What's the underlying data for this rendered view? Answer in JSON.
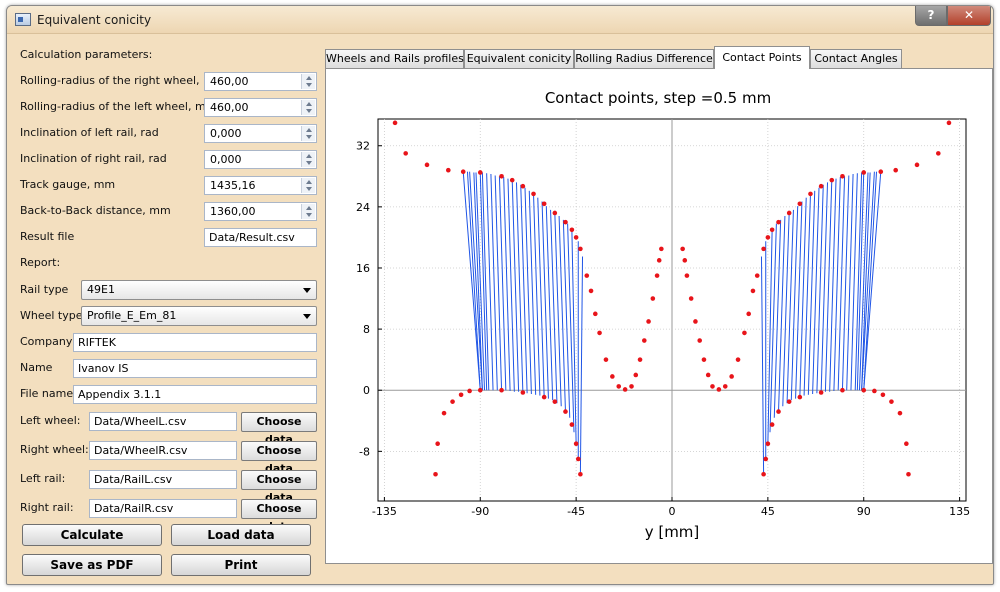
{
  "window": {
    "title": "Equivalent conicity",
    "help_label": "?",
    "close_label": "✕"
  },
  "params": {
    "header": "Calculation parameters:",
    "right_radius_label": "Rolling-radius of the right wheel, mm",
    "right_radius_value": "460,00",
    "left_radius_label": "Rolling-radius of the left wheel, mm",
    "left_radius_value": "460,00",
    "left_incl_label": "Inclination of left rail, rad",
    "left_incl_value": "0,000",
    "right_incl_label": "Inclination of right rail, rad",
    "right_incl_value": "0,000",
    "gauge_label": "Track gauge, mm",
    "gauge_value": "1435,16",
    "b2b_label": "Back-to-Back distance, mm",
    "b2b_value": "1360,00",
    "result_label": "Result file",
    "result_value": "Data/Result.csv"
  },
  "report": {
    "header": "Report:",
    "rail_type_label": "Rail type",
    "rail_type_value": "49E1",
    "wheel_type_label": "Wheel type",
    "wheel_type_value": "Profile_E_Em_81",
    "company_label": "Company",
    "company_value": "RIFTEK",
    "name_label": "Name",
    "name_value": "Ivanov IS",
    "filename_label": "File name",
    "filename_value": "Appendix 3.1.1"
  },
  "files": [
    {
      "label": "Left wheel:",
      "value": "Data/WheelL.csv",
      "button": "Choose data"
    },
    {
      "label": "Right wheel:",
      "value": "Data/WheelR.csv",
      "button": "Choose data"
    },
    {
      "label": "Left rail:",
      "value": "Data/RailL.csv",
      "button": "Choose data"
    },
    {
      "label": "Right rail:",
      "value": "Data/RailR.csv",
      "button": "Choose data"
    }
  ],
  "actions": {
    "calculate": "Calculate",
    "load": "Load data",
    "save_pdf": "Save as PDF",
    "print": "Print"
  },
  "tabs": [
    {
      "label": "Wheels and Rails profiles"
    },
    {
      "label": "Equivalent conicity"
    },
    {
      "label": "Rolling Radius Difference"
    },
    {
      "label": "Contact Points"
    },
    {
      "label": "Contact Angles"
    }
  ],
  "chart_data": {
    "type": "scatter",
    "title": "Contact points, step =0.5 mm",
    "xlabel": "y [mm]",
    "ylabel": "",
    "xlim": [
      -138,
      138
    ],
    "ylim": [
      -14.5,
      35.5
    ],
    "x_ticks": [
      -135,
      -90,
      -45,
      0,
      45,
      90,
      135
    ],
    "y_ticks": [
      -8,
      0,
      8,
      16,
      24,
      32
    ],
    "grid": true,
    "colors": {
      "profile": "#e8141a",
      "contact": "#1f55e6"
    },
    "series": [
      {
        "type": "points",
        "points": [
          [
            -130,
            35
          ],
          [
            -125,
            31
          ],
          [
            -115,
            29.5
          ],
          [
            -105,
            28.8
          ],
          [
            -98,
            28.6
          ],
          [
            -90,
            28.5
          ],
          [
            -80,
            28
          ],
          [
            -75,
            27.5
          ],
          [
            -70,
            26.7
          ],
          [
            -65,
            25.7
          ],
          [
            -60,
            24.4
          ],
          [
            -55,
            23.2
          ],
          [
            -50,
            22
          ],
          [
            -47,
            21
          ],
          [
            -45,
            20
          ],
          [
            -43,
            18.5
          ],
          [
            -40,
            15
          ],
          [
            -38,
            13
          ],
          [
            -36,
            10
          ],
          [
            -34,
            7.5
          ],
          [
            -31,
            4
          ],
          [
            -28,
            1.8
          ],
          [
            -25,
            0.5
          ],
          [
            -22,
            0.1
          ],
          [
            -19,
            0.5
          ],
          [
            -17,
            2
          ],
          [
            -15,
            4
          ],
          [
            -13,
            6.5
          ],
          [
            -11,
            9
          ],
          [
            -9,
            12
          ],
          [
            -7,
            15
          ],
          [
            -6,
            17
          ],
          [
            -5,
            18.5
          ],
          [
            5,
            18.5
          ],
          [
            6,
            17
          ],
          [
            7,
            15
          ],
          [
            9,
            12
          ],
          [
            11,
            9
          ],
          [
            13,
            6.5
          ],
          [
            15,
            4
          ],
          [
            17,
            2
          ],
          [
            19,
            0.5
          ],
          [
            22,
            0.1
          ],
          [
            25,
            0.5
          ],
          [
            28,
            1.8
          ],
          [
            31,
            4
          ],
          [
            34,
            7.5
          ],
          [
            36,
            10
          ],
          [
            38,
            13
          ],
          [
            40,
            15
          ],
          [
            43,
            18.5
          ],
          [
            45,
            20
          ],
          [
            47,
            21
          ],
          [
            50,
            22
          ],
          [
            55,
            23.2
          ],
          [
            60,
            24.4
          ],
          [
            65,
            25.7
          ],
          [
            70,
            26.7
          ],
          [
            75,
            27.5
          ],
          [
            80,
            28
          ],
          [
            90,
            28.5
          ],
          [
            98,
            28.6
          ],
          [
            105,
            28.8
          ],
          [
            115,
            29.5
          ],
          [
            125,
            31
          ],
          [
            130,
            35
          ]
        ]
      },
      {
        "type": "points",
        "points": [
          [
            -111,
            -11
          ],
          [
            -110,
            -7
          ],
          [
            -107,
            -3
          ],
          [
            -103,
            -1.5
          ],
          [
            -99,
            -0.6
          ],
          [
            -95,
            -0.1
          ],
          [
            -90,
            0
          ],
          [
            -80,
            0
          ],
          [
            -70,
            -0.3
          ],
          [
            -60,
            -0.9
          ],
          [
            -55,
            -1.5
          ],
          [
            -50,
            -2.8
          ],
          [
            -47,
            -4.5
          ],
          [
            -45,
            -7
          ],
          [
            -44,
            -9
          ],
          [
            -43,
            -11
          ],
          [
            43,
            -11
          ],
          [
            44,
            -9
          ],
          [
            45,
            -7
          ],
          [
            47,
            -4.5
          ],
          [
            50,
            -2.8
          ],
          [
            55,
            -1.5
          ],
          [
            60,
            -0.9
          ],
          [
            70,
            -0.3
          ],
          [
            80,
            0
          ],
          [
            90,
            0
          ],
          [
            95,
            -0.1
          ],
          [
            99,
            -0.6
          ],
          [
            103,
            -1.5
          ],
          [
            107,
            -3
          ],
          [
            110,
            -7
          ],
          [
            111,
            -11
          ]
        ]
      },
      {
        "type": "lines",
        "segments": [
          [
            [
              -98,
              28.6
            ],
            [
              -90,
              0
            ]
          ],
          [
            [
              -96,
              28.6
            ],
            [
              -90,
              0
            ]
          ],
          [
            [
              -95,
              28.6
            ],
            [
              -89,
              0
            ]
          ],
          [
            [
              -93,
              28.5
            ],
            [
              -89,
              0
            ]
          ],
          [
            [
              -92,
              28.5
            ],
            [
              -88,
              0
            ]
          ],
          [
            [
              -90,
              28.5
            ],
            [
              -87,
              0
            ]
          ],
          [
            [
              -89,
              28.5
            ],
            [
              -86,
              0
            ]
          ],
          [
            [
              -87,
              28.4
            ],
            [
              -84,
              0
            ]
          ],
          [
            [
              -85,
              28.3
            ],
            [
              -82,
              0
            ]
          ],
          [
            [
              -83,
              28.1
            ],
            [
              -80,
              0
            ]
          ],
          [
            [
              -81,
              28
            ],
            [
              -78,
              0
            ]
          ],
          [
            [
              -79,
              27.9
            ],
            [
              -76,
              -0.1
            ]
          ],
          [
            [
              -77,
              27.7
            ],
            [
              -74,
              -0.2
            ]
          ],
          [
            [
              -75,
              27.5
            ],
            [
              -72,
              -0.2
            ]
          ],
          [
            [
              -73,
              27.2
            ],
            [
              -70,
              -0.3
            ]
          ],
          [
            [
              -71,
              26.9
            ],
            [
              -68,
              -0.4
            ]
          ],
          [
            [
              -69,
              26.5
            ],
            [
              -66,
              -0.5
            ]
          ],
          [
            [
              -67,
              26.1
            ],
            [
              -64,
              -0.6
            ]
          ],
          [
            [
              -65,
              25.7
            ],
            [
              -62,
              -0.7
            ]
          ],
          [
            [
              -63,
              25.2
            ],
            [
              -60,
              -0.9
            ]
          ],
          [
            [
              -61,
              24.7
            ],
            [
              -58,
              -1.1
            ]
          ],
          [
            [
              -59,
              24.1
            ],
            [
              -56,
              -1.3
            ]
          ],
          [
            [
              -57,
              23.6
            ],
            [
              -54,
              -1.7
            ]
          ],
          [
            [
              -55,
              23.2
            ],
            [
              -52,
              -2.1
            ]
          ],
          [
            [
              -53,
              22.8
            ],
            [
              -50,
              -2.8
            ]
          ],
          [
            [
              -51,
              22.3
            ],
            [
              -48,
              -3.6
            ]
          ],
          [
            [
              -49,
              21.8
            ],
            [
              -46,
              -5.5
            ]
          ],
          [
            [
              -47,
              21
            ],
            [
              -45,
              -7
            ]
          ],
          [
            [
              -44,
              19.5
            ],
            [
              -44,
              -9
            ]
          ],
          [
            [
              -42,
              17.5
            ],
            [
              -43,
              -11
            ]
          ],
          [
            [
              98,
              28.6
            ],
            [
              90,
              0
            ]
          ],
          [
            [
              96,
              28.6
            ],
            [
              90,
              0
            ]
          ],
          [
            [
              95,
              28.6
            ],
            [
              89,
              0
            ]
          ],
          [
            [
              93,
              28.5
            ],
            [
              89,
              0
            ]
          ],
          [
            [
              92,
              28.5
            ],
            [
              88,
              0
            ]
          ],
          [
            [
              90,
              28.5
            ],
            [
              87,
              0
            ]
          ],
          [
            [
              89,
              28.5
            ],
            [
              86,
              0
            ]
          ],
          [
            [
              87,
              28.4
            ],
            [
              84,
              0
            ]
          ],
          [
            [
              85,
              28.3
            ],
            [
              82,
              0
            ]
          ],
          [
            [
              83,
              28.1
            ],
            [
              80,
              0
            ]
          ],
          [
            [
              81,
              28
            ],
            [
              78,
              0
            ]
          ],
          [
            [
              79,
              27.9
            ],
            [
              76,
              -0.1
            ]
          ],
          [
            [
              77,
              27.7
            ],
            [
              74,
              -0.2
            ]
          ],
          [
            [
              75,
              27.5
            ],
            [
              72,
              -0.2
            ]
          ],
          [
            [
              73,
              27.2
            ],
            [
              70,
              -0.3
            ]
          ],
          [
            [
              71,
              26.9
            ],
            [
              68,
              -0.4
            ]
          ],
          [
            [
              69,
              26.5
            ],
            [
              66,
              -0.5
            ]
          ],
          [
            [
              67,
              26.1
            ],
            [
              64,
              -0.6
            ]
          ],
          [
            [
              65,
              25.7
            ],
            [
              62,
              -0.7
            ]
          ],
          [
            [
              63,
              25.2
            ],
            [
              60,
              -0.9
            ]
          ],
          [
            [
              61,
              24.7
            ],
            [
              58,
              -1.1
            ]
          ],
          [
            [
              59,
              24.1
            ],
            [
              56,
              -1.3
            ]
          ],
          [
            [
              57,
              23.6
            ],
            [
              54,
              -1.7
            ]
          ],
          [
            [
              55,
              23.2
            ],
            [
              52,
              -2.1
            ]
          ],
          [
            [
              53,
              22.8
            ],
            [
              50,
              -2.8
            ]
          ],
          [
            [
              51,
              22.3
            ],
            [
              48,
              -3.6
            ]
          ],
          [
            [
              49,
              21.8
            ],
            [
              46,
              -5.5
            ]
          ],
          [
            [
              47,
              21
            ],
            [
              45,
              -7
            ]
          ],
          [
            [
              44,
              19.5
            ],
            [
              44,
              -9
            ]
          ],
          [
            [
              42,
              17.5
            ],
            [
              43,
              -11
            ]
          ]
        ]
      }
    ]
  }
}
